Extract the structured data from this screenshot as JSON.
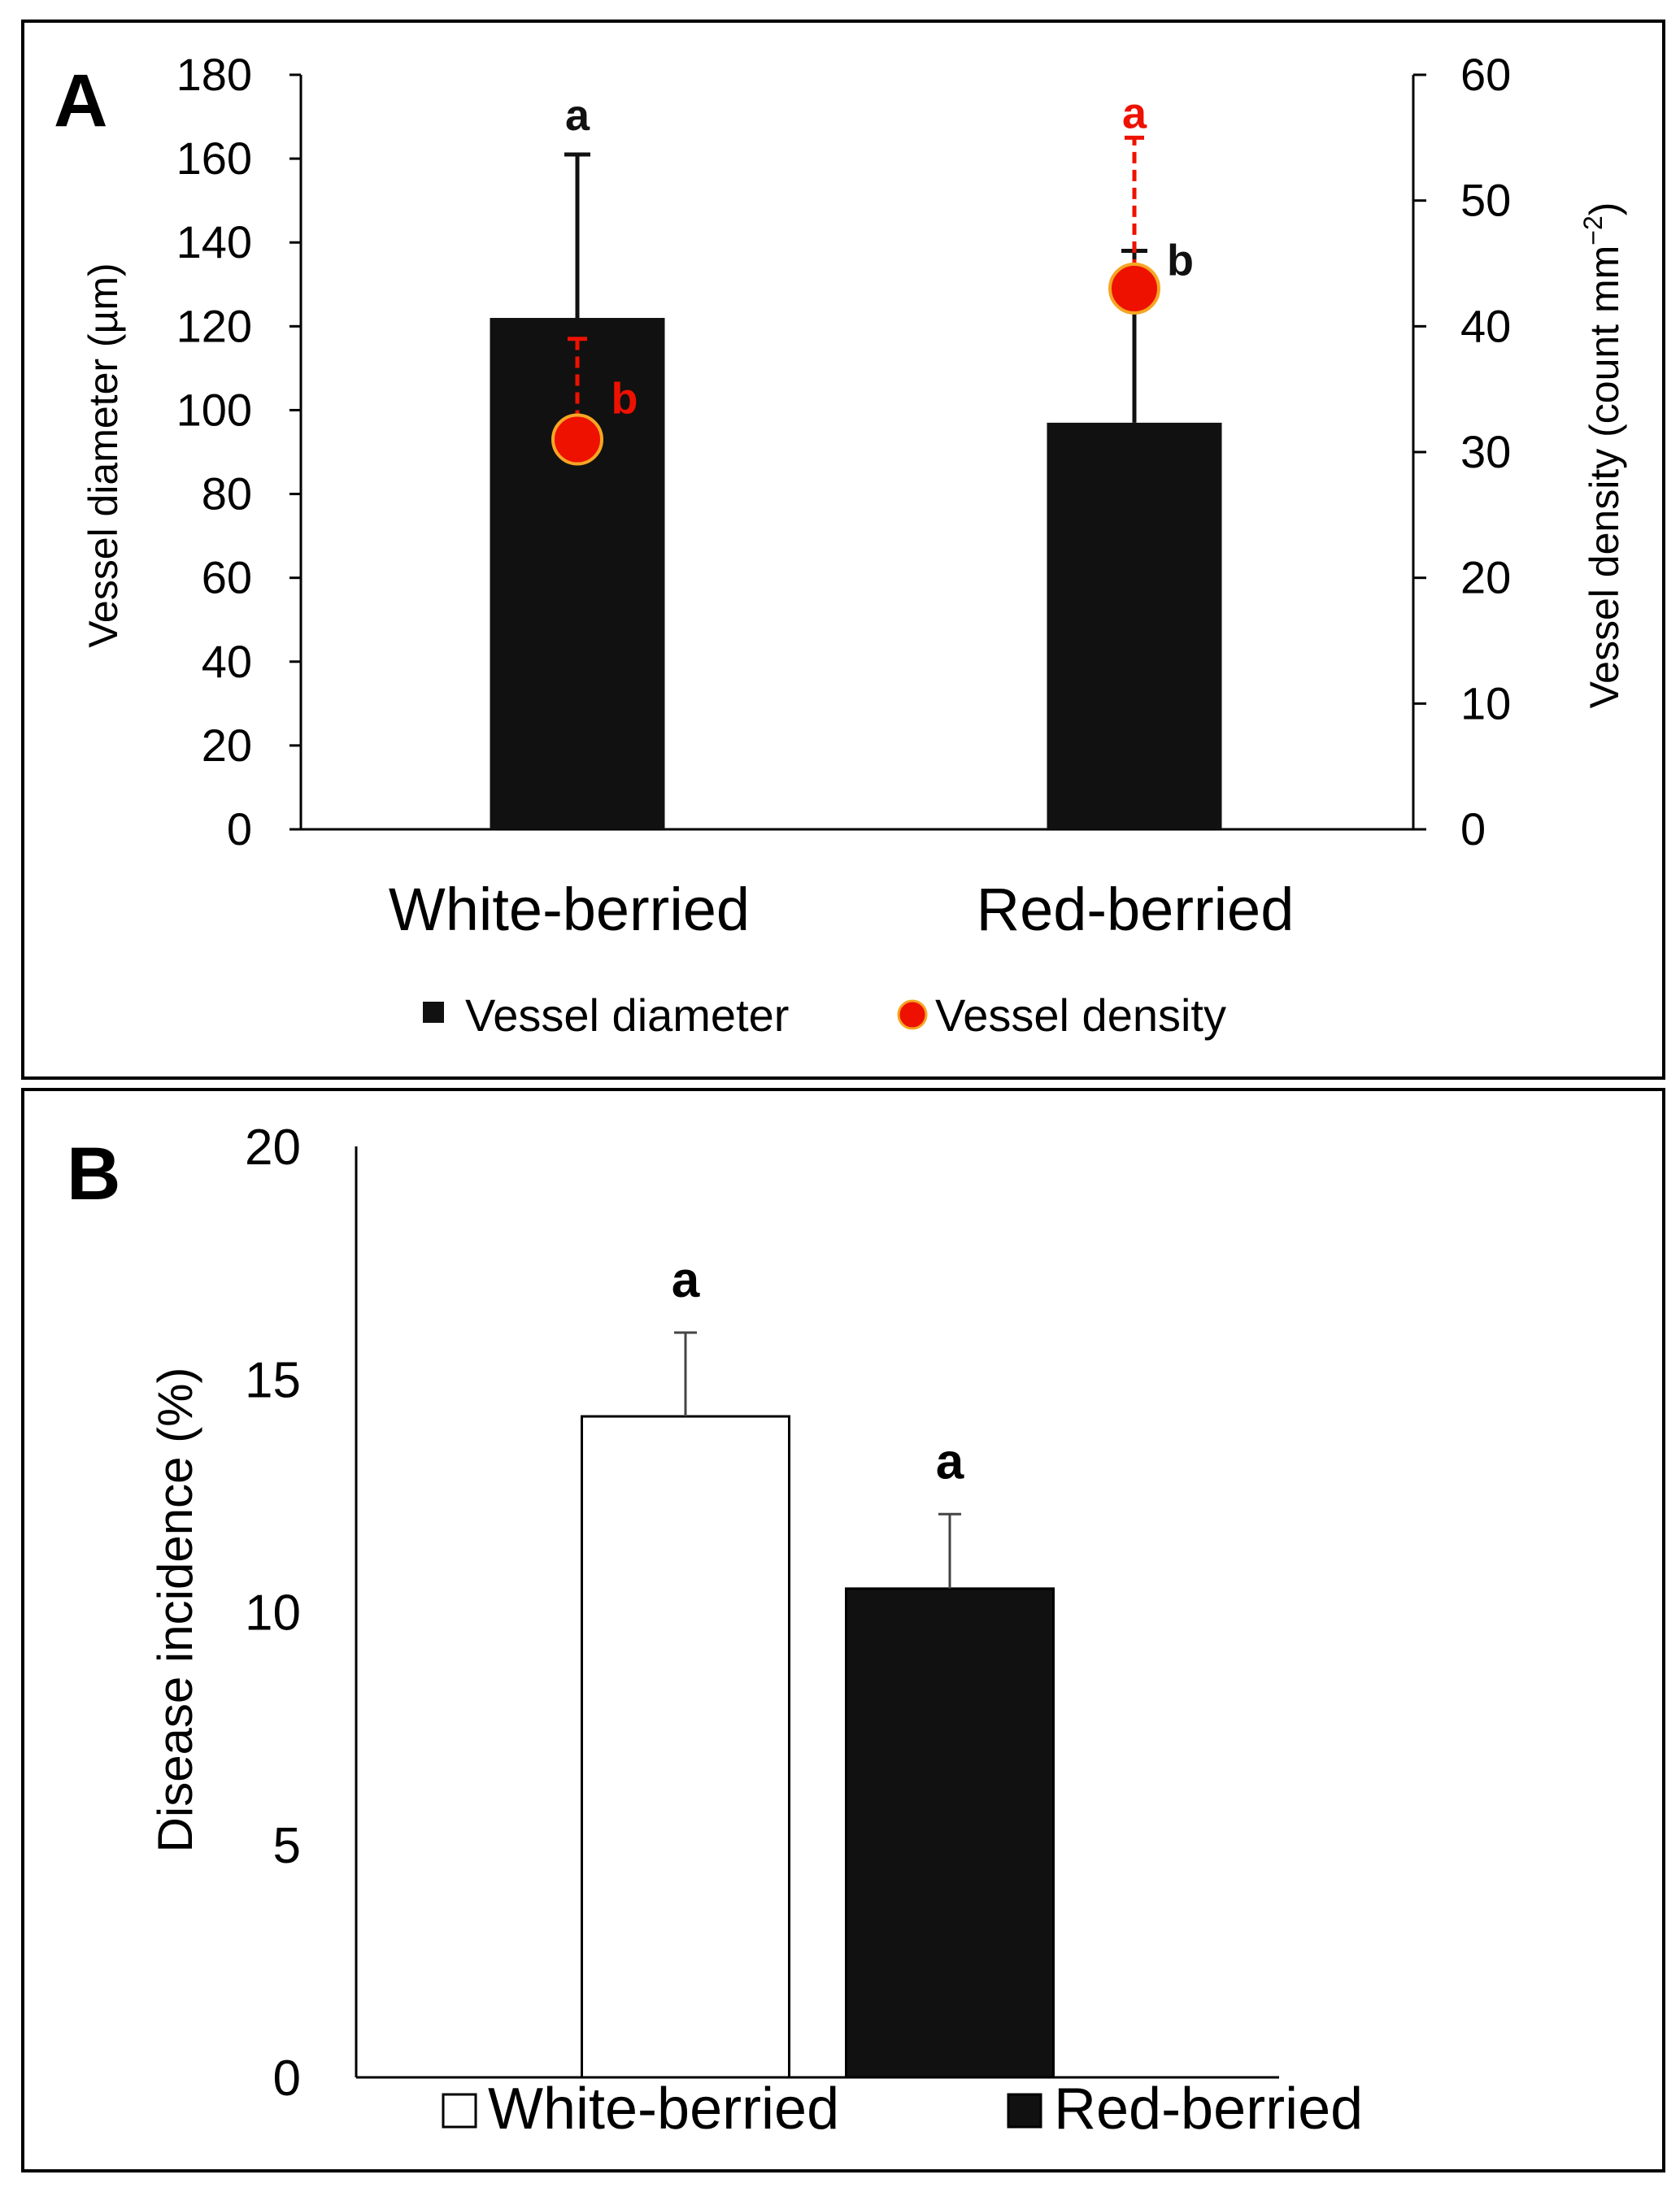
{
  "chart_data": [
    {
      "panel_label": "A",
      "type": "bar",
      "categories": [
        "White-berried",
        "Red-berried"
      ],
      "ylabel": "Vessel diameter (µm)",
      "ylabel_parts": [
        "Vessel diameter (",
        "µ",
        "m)"
      ],
      "y2label": "Vessel density  (count mm",
      "y2label_sup": "−2",
      "y2label_close": ")",
      "ylim": [
        0,
        180
      ],
      "y_ticks": [
        0,
        20,
        40,
        60,
        80,
        100,
        120,
        140,
        160,
        180
      ],
      "y2lim": [
        0,
        60
      ],
      "y2_ticks": [
        0,
        10,
        20,
        30,
        40,
        50,
        60
      ],
      "series": [
        {
          "name": "Vessel diameter",
          "kind": "bar",
          "axis": "left",
          "color": "#111111",
          "values": [
            122,
            97
          ],
          "error_upper": [
            161,
            138
          ],
          "letters": [
            "a",
            "b"
          ],
          "letter_color": "#111111"
        },
        {
          "name": "Vessel density",
          "kind": "point",
          "axis": "right",
          "color": "#ee1100",
          "edge_color": "#f5a623",
          "values": [
            31,
            43
          ],
          "error_upper": [
            39,
            55
          ],
          "letters": [
            "b",
            "a"
          ],
          "letter_color": "#ee1100"
        }
      ],
      "legend": [
        "Vessel diameter",
        "Vessel density"
      ],
      "legend_position": "bottom"
    },
    {
      "panel_label": "B",
      "type": "bar",
      "categories": [
        "White-berried",
        "Red-berried"
      ],
      "ylabel": "Disease incidence (%)",
      "ylim": [
        0,
        20
      ],
      "y_ticks": [
        0,
        5,
        10,
        15,
        20
      ],
      "series": [
        {
          "name": "Disease incidence",
          "values": [
            14.2,
            10.5
          ],
          "error_upper": [
            16.0,
            12.1
          ],
          "letters": [
            "a",
            "a"
          ],
          "colors": [
            "#ffffff",
            "#111111"
          ]
        }
      ],
      "legend": [
        "White-berried",
        "Red-berried"
      ],
      "legend_position": "bottom"
    }
  ]
}
